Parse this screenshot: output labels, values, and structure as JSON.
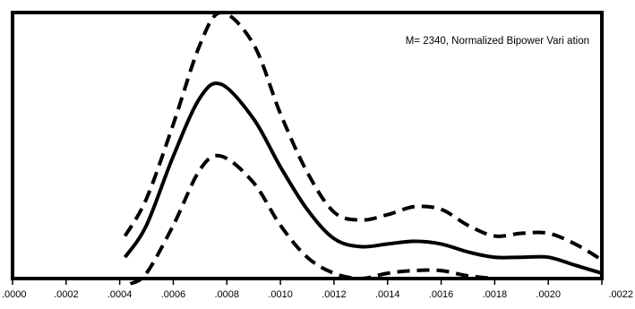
{
  "chart_data": {
    "type": "line",
    "title": "",
    "xlabel": "",
    "ylabel": "",
    "annotation": "M= 2340, Normalized Bipower Vari ation",
    "xlim": [
      0.0,
      0.0022
    ],
    "ylim": [
      0,
      1.0
    ],
    "x_ticks": [
      0.0,
      0.0002,
      0.0004,
      0.0006,
      0.0008,
      0.001,
      0.0012,
      0.0014,
      0.0016,
      0.0018,
      0.002,
      0.0022
    ],
    "x_tick_labels": [
      ".0000",
      ".0002",
      ".0004",
      ".0006",
      ".0008",
      ".0010",
      ".0012",
      ".0014",
      ".0016",
      ".0018",
      ".0020",
      ".0022"
    ],
    "y_ticks_shown": false,
    "grid": false,
    "legend": "none",
    "series": [
      {
        "style": "dashed",
        "x": [
          0.00042,
          0.0005,
          0.0006,
          0.0007,
          0.00078,
          0.0009,
          0.001,
          0.0011,
          0.0012,
          0.0013,
          0.0014,
          0.0015,
          0.0016,
          0.0017,
          0.0018,
          0.0019,
          0.002,
          0.0021,
          0.0022
        ],
        "values": [
          0.16,
          0.3,
          0.58,
          0.88,
          1.0,
          0.88,
          0.62,
          0.4,
          0.25,
          0.22,
          0.24,
          0.27,
          0.26,
          0.2,
          0.16,
          0.17,
          0.17,
          0.13,
          0.07
        ]
      },
      {
        "style": "solid",
        "x": [
          0.00042,
          0.0005,
          0.0006,
          0.0007,
          0.00078,
          0.0009,
          0.001,
          0.0011,
          0.0012,
          0.0013,
          0.0014,
          0.0015,
          0.0016,
          0.0017,
          0.0018,
          0.0019,
          0.002,
          0.0021,
          0.0022
        ],
        "values": [
          0.08,
          0.2,
          0.46,
          0.68,
          0.73,
          0.6,
          0.42,
          0.26,
          0.15,
          0.12,
          0.13,
          0.14,
          0.13,
          0.1,
          0.08,
          0.08,
          0.08,
          0.05,
          0.02
        ]
      },
      {
        "style": "dashed",
        "x": [
          0.00044,
          0.0005,
          0.0006,
          0.0007,
          0.00078,
          0.0009,
          0.001,
          0.0011,
          0.0012,
          0.0013,
          0.0014,
          0.0015,
          0.0016,
          0.0017,
          0.0018
        ],
        "values": [
          -0.02,
          0.02,
          0.2,
          0.41,
          0.46,
          0.36,
          0.2,
          0.08,
          0.02,
          0.0,
          0.02,
          0.03,
          0.03,
          0.01,
          0.0
        ]
      }
    ]
  }
}
